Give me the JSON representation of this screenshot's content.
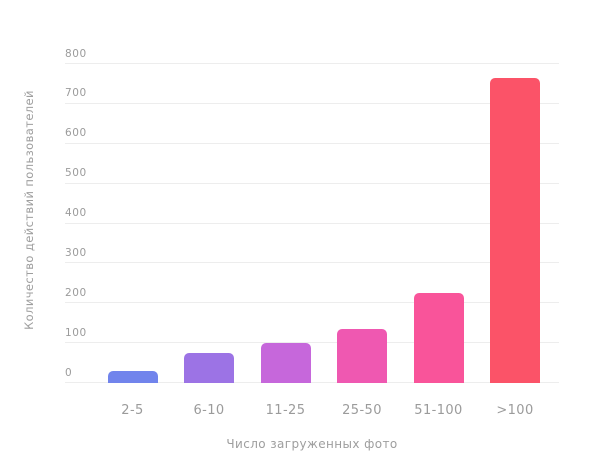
{
  "chart_data": {
    "type": "bar",
    "title": "",
    "categories": [
      "2-5",
      "6-10",
      "11-25",
      "25-50",
      "51-100",
      ">100"
    ],
    "values": [
      30,
      75,
      100,
      135,
      225,
      765
    ],
    "xlabel": "Число загруженных фото",
    "ylabel": "Количество действий пользователей",
    "ylim": [
      0,
      800
    ],
    "ytick_step": 100,
    "ytick_labels": [
      "0",
      "100",
      "200",
      "300",
      "400",
      "500",
      "600",
      "700",
      "800"
    ],
    "grid": true,
    "legend": "none",
    "bar_colors": [
      "#7184EC",
      "#9C73E5",
      "#C667DB",
      "#EF58B1",
      "#F9549A",
      "#FB5368"
    ]
  },
  "style": {
    "background": "#ffffff",
    "grid_color": "#ededed",
    "tick_text_color": "#9b9b9b",
    "axis_title_color": "#9e9e9e"
  }
}
